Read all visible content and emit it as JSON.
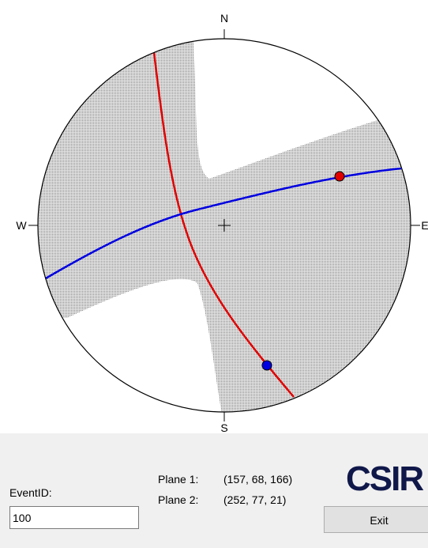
{
  "stereonet": {
    "north": "N",
    "south": "S",
    "east": "E",
    "west": "W"
  },
  "panel": {
    "event_label": "EventID:",
    "event_id": "100",
    "plane1_label": "Plane 1:",
    "plane1_value": "(157, 68, 166)",
    "plane2_label": "Plane 2:",
    "plane2_value": "(252, 77, 21)",
    "logo": "CSIR",
    "exit_button": "Exit"
  }
}
